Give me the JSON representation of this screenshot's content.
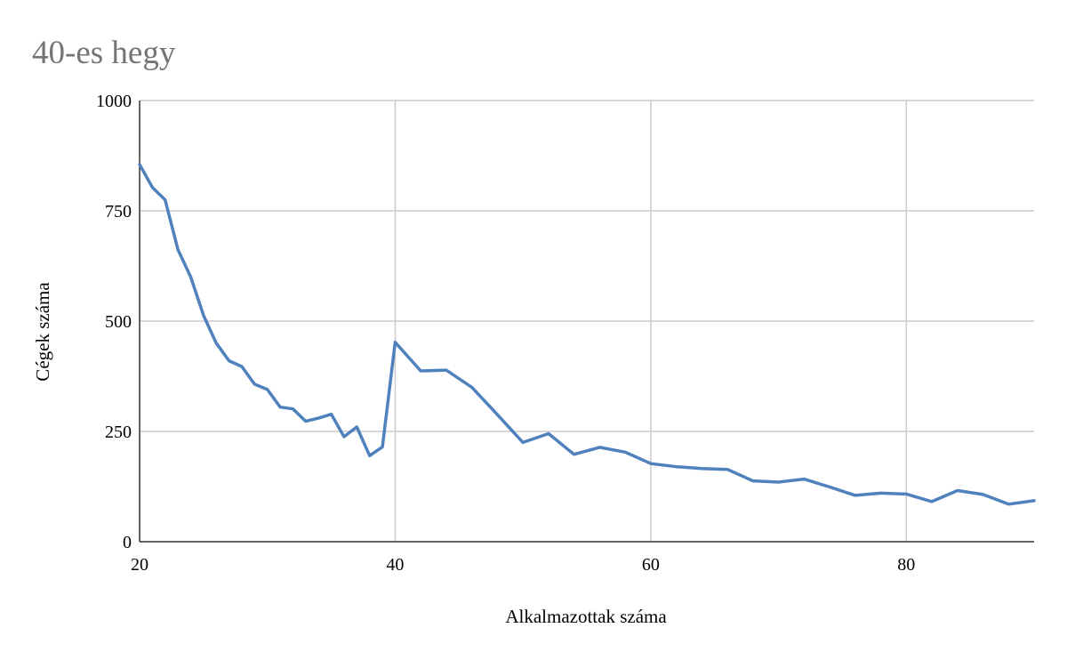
{
  "chart_data": {
    "type": "line",
    "title": "40-es hegy",
    "xlabel": "Alkalmazottak száma",
    "ylabel": "Cégek száma",
    "xlim": [
      20,
      90
    ],
    "ylim": [
      0,
      1000
    ],
    "x_ticks": [
      20,
      40,
      60,
      80
    ],
    "y_ticks": [
      0,
      250,
      500,
      750,
      1000
    ],
    "grid": true,
    "legend": "none",
    "series": [
      {
        "color": "#4f81bd",
        "x": [
          20,
          21,
          22,
          23,
          24,
          25,
          26,
          27,
          28,
          29,
          30,
          31,
          32,
          33,
          34,
          35,
          36,
          37,
          38,
          39,
          40,
          42,
          44,
          46,
          48,
          50,
          52,
          54,
          56,
          58,
          60,
          62,
          64,
          66,
          68,
          70,
          72,
          74,
          76,
          78,
          80,
          82,
          84,
          86,
          88,
          90
        ],
        "y": [
          855,
          803,
          775,
          662,
          600,
          513,
          450,
          410,
          397,
          357,
          345,
          305,
          301,
          273,
          280,
          289,
          238,
          260,
          195,
          215,
          452,
          387,
          389,
          350,
          288,
          225,
          245,
          198,
          214,
          203,
          177,
          170,
          166,
          164,
          138,
          135,
          142,
          124,
          105,
          110,
          108,
          91,
          116,
          107,
          85,
          93
        ]
      }
    ]
  }
}
